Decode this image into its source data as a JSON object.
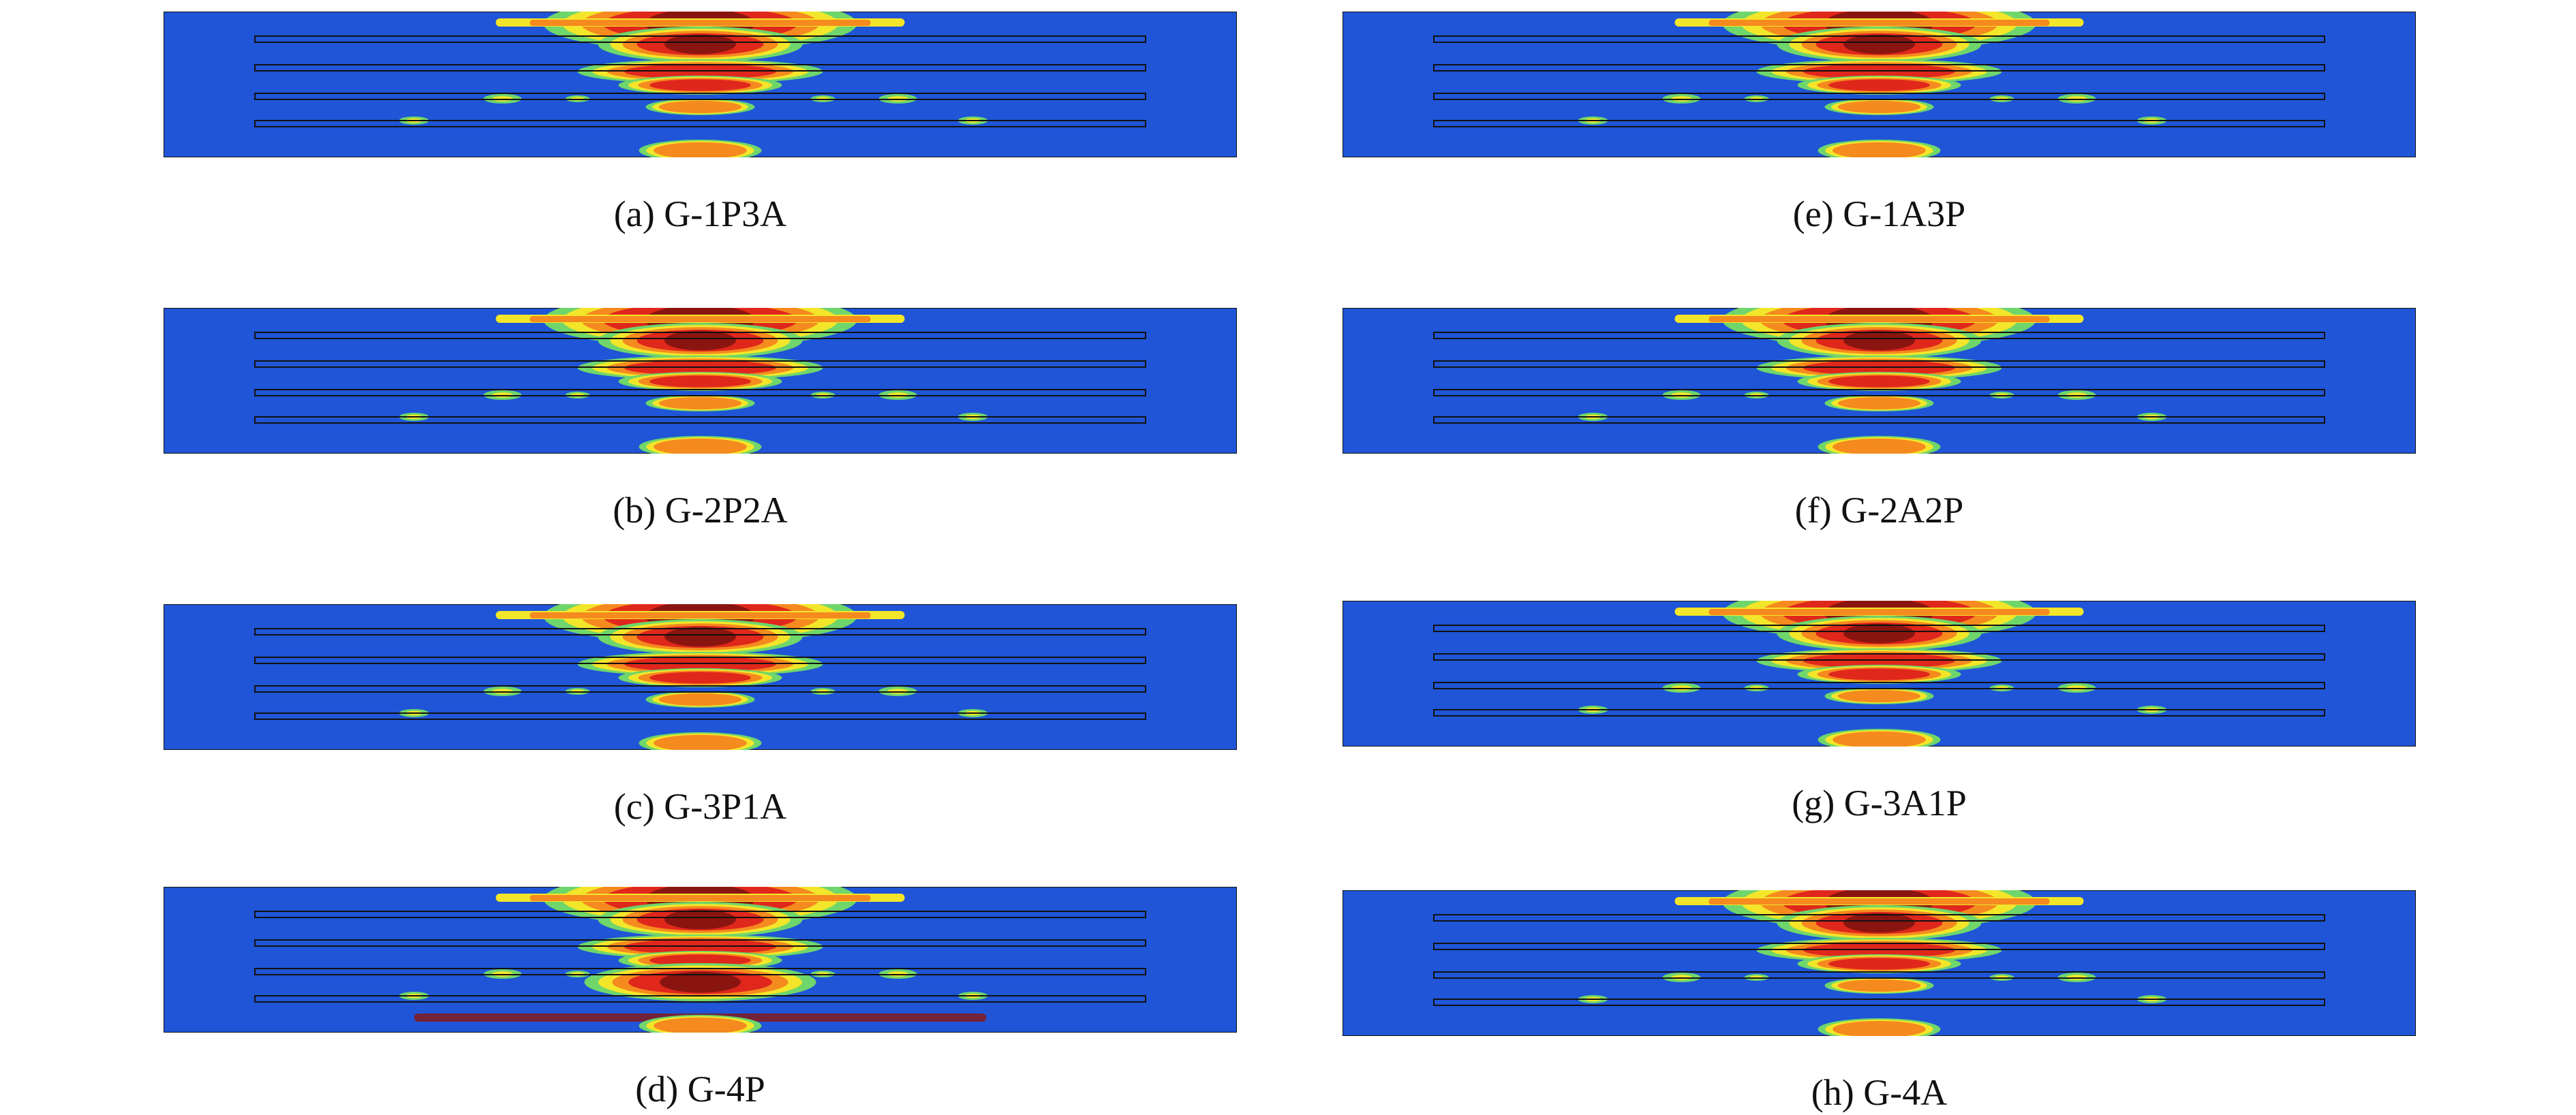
{
  "figure": {
    "panels": [
      {
        "id": "a",
        "caption": "(a) G-1P3A"
      },
      {
        "id": "b",
        "caption": "(b) G-2P2A"
      },
      {
        "id": "c",
        "caption": "(c) G-3P1A"
      },
      {
        "id": "d",
        "caption": "(d) G-4P"
      },
      {
        "id": "e",
        "caption": "(e) G-1A3P"
      },
      {
        "id": "f",
        "caption": "(f) G-2A2P"
      },
      {
        "id": "g",
        "caption": "(g) G-3A1P"
      },
      {
        "id": "h",
        "caption": "(h) G-4A"
      }
    ],
    "colors": {
      "background": "#1f55d6",
      "red": "#e0271c",
      "dark_red": "#8a1510",
      "orange": "#f58a1f",
      "yellow": "#f3e62a",
      "green": "#6fd66b",
      "cyan": "#25d7dc",
      "outline": "#111111"
    }
  }
}
